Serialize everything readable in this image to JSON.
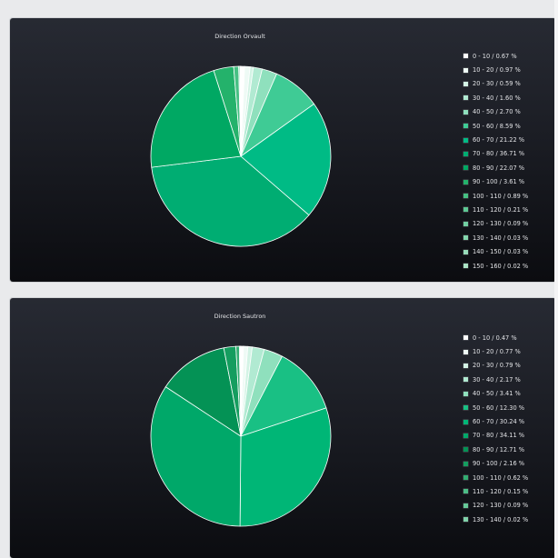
{
  "chart_data": [
    {
      "type": "pie",
      "title": "Direction Orvault",
      "legend_position": "right",
      "categories": [
        "0 - 10 / 0.67 %",
        "10 - 20 / 0.97 %",
        "20 - 30 / 0.59 %",
        "30 - 40 / 1.60 %",
        "40 - 50 / 2.70 %",
        "50 - 60 / 8.59 %",
        "60 - 70 / 21.22 %",
        "70 - 80 / 36.71 %",
        "80 - 90 / 22.07 %",
        "90 - 100 / 3.61 %",
        "100 - 110 / 0.89 %",
        "110 - 120 / 0.21 %",
        "120 - 130 / 0.09 %",
        "130 - 140 / 0.03 %",
        "140 - 150 / 0.03 %",
        "150 - 160 / 0.02 %"
      ],
      "values": [
        0.67,
        0.97,
        0.59,
        1.6,
        2.7,
        8.59,
        21.22,
        36.71,
        22.07,
        3.61,
        0.89,
        0.21,
        0.09,
        0.03,
        0.03,
        0.02
      ],
      "colors": [
        "#ffffff",
        "#eefaf5",
        "#d3f3e5",
        "#b1ead2",
        "#8fe0bd",
        "#3fcb95",
        "#00bb85",
        "#00ad72",
        "#00a863",
        "#24b26b",
        "#46c083",
        "#5ec994",
        "#72cfa2",
        "#84d6ad",
        "#97dcb9",
        "#abe3c5"
      ]
    },
    {
      "type": "pie",
      "title": "Direction Sautron",
      "legend_position": "right",
      "categories": [
        "0 - 10 / 0.47 %",
        "10 - 20 / 0.77 %",
        "20 - 30 / 0.79 %",
        "30 - 40 / 2.17 %",
        "40 - 50 / 3.41 %",
        "50 - 60 / 12.30 %",
        "60 - 70 / 30.24 %",
        "70 - 80 / 34.11 %",
        "80 - 90 / 12.71 %",
        "90 - 100 / 2.16 %",
        "100 - 110 / 0.62 %",
        "110 - 120 / 0.15 %",
        "120 - 130 / 0.09 %",
        "130 - 140 / 0.02 %"
      ],
      "values": [
        0.47,
        0.77,
        0.79,
        2.17,
        3.41,
        12.3,
        30.24,
        34.11,
        12.71,
        2.16,
        0.62,
        0.15,
        0.09,
        0.02
      ],
      "colors": [
        "#ffffff",
        "#eefaf5",
        "#d3f3e5",
        "#b1ead2",
        "#8fe0bd",
        "#19c084",
        "#00b676",
        "#00a869",
        "#049255",
        "#159d5f",
        "#33ad72",
        "#4cbd86",
        "#66c898",
        "#81d3ab"
      ]
    }
  ]
}
